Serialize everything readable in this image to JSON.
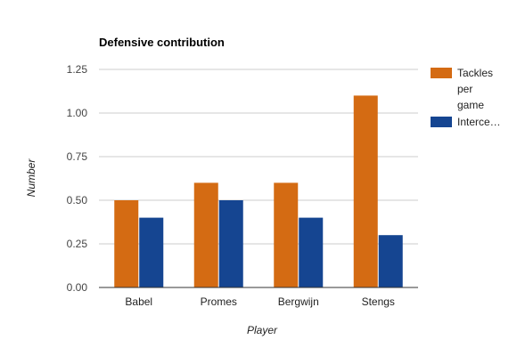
{
  "chart_data": {
    "type": "bar",
    "title": "Defensive contribution",
    "xlabel": "Player",
    "ylabel": "Number",
    "categories": [
      "Babel",
      "Promes",
      "Bergwijn",
      "Stengs"
    ],
    "series": [
      {
        "name": "Tackles per game",
        "legend_lines": [
          "Tackles",
          "per",
          "game"
        ],
        "color": "#d46b13",
        "values": [
          0.5,
          0.6,
          0.6,
          1.1
        ]
      },
      {
        "name": "Interce…",
        "legend_lines": [
          "Interce…"
        ],
        "color": "#154591",
        "values": [
          0.4,
          0.5,
          0.4,
          0.3
        ]
      }
    ],
    "ylim": [
      0,
      1.25
    ],
    "yticks": [
      "0.00",
      "0.25",
      "0.50",
      "0.75",
      "1.00",
      "1.25"
    ],
    "grid": true,
    "legend_position": "right"
  }
}
